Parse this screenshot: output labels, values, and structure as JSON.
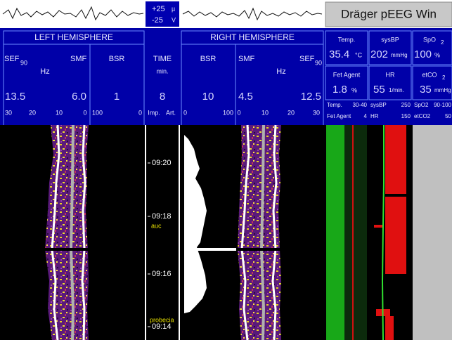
{
  "top": {
    "scale_top": "+25",
    "scale_top_unit": "µ",
    "scale_bottom": "-25",
    "scale_bottom_unit": "V",
    "product": "Dräger pEEG Win"
  },
  "left": {
    "title": "LEFT HEMISPHERE",
    "sef": "SEF",
    "sef_sub": "90",
    "smf": "SMF",
    "hz": "Hz",
    "bsr": "BSR",
    "sef_value": "13.5",
    "smf_value": "6.0",
    "bsr_value": "1",
    "scale": [
      "30",
      "20",
      "10",
      "0"
    ],
    "bsr_scale": [
      "100",
      "0"
    ]
  },
  "time": {
    "title": "TIME",
    "unit": "min.",
    "value": "8",
    "imp": "Imp.",
    "art": "Art.",
    "labels": [
      "09:20",
      "09:18",
      "09:16",
      "09:14"
    ],
    "events": [
      "auc",
      "probecia"
    ]
  },
  "right": {
    "title": "RIGHT HEMISPHERE",
    "bsr": "BSR",
    "smf": "SMF",
    "hz": "Hz",
    "sef": "SEF",
    "sef_sub": "90",
    "bsr_value": "10",
    "smf_value": "4.5",
    "sef_value": "12.5",
    "bsr_scale": [
      "0",
      "100"
    ],
    "scale": [
      "0",
      "10",
      "20",
      "30"
    ]
  },
  "vitals": {
    "temp": {
      "label": "Temp.",
      "value": "35.4",
      "unit": "°C"
    },
    "sysbp": {
      "label": "sysBP",
      "value": "202",
      "unit": "mmHg"
    },
    "spo2": {
      "label": "SpO",
      "sub": "2",
      "value": "100",
      "unit": "%"
    },
    "fet_agent": {
      "label": "Fet Agent",
      "value": "1.8",
      "unit": "%"
    },
    "hr": {
      "label": "HR",
      "value": "55",
      "unit": "1/min."
    },
    "etco2": {
      "label": "etCO",
      "sub": "2",
      "value": "35",
      "unit": "mmHg"
    },
    "scale1": [
      "Temp.",
      "30-40",
      "Fet Agent",
      "4"
    ],
    "scale2": [
      "sysBP",
      "250",
      "HR",
      "150"
    ],
    "scale3": [
      "SpO2",
      "90-100",
      "etCO2",
      "50"
    ]
  }
}
